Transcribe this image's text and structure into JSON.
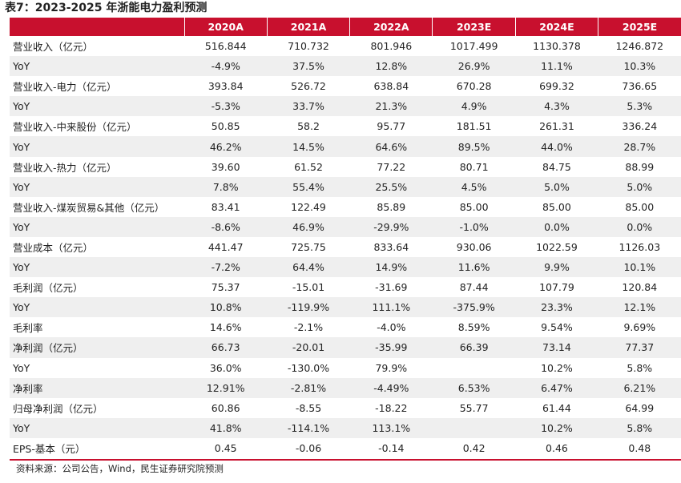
{
  "title": "表7：2023-2025 年浙能电力盈利预测",
  "headers": [
    "",
    "2020A",
    "2021A",
    "2022A",
    "2023E",
    "2024E",
    "2025E"
  ],
  "rows": [
    {
      "label": "营业收入（亿元）",
      "values": [
        "516.844",
        "710.732",
        "801.946",
        "1017.499",
        "1130.378",
        "1246.872"
      ]
    },
    {
      "label": "YoY",
      "values": [
        "-4.9%",
        "37.5%",
        "12.8%",
        "26.9%",
        "11.1%",
        "10.3%"
      ]
    },
    {
      "label": "营业收入-电力（亿元）",
      "values": [
        "393.84",
        "526.72",
        "638.84",
        "670.28",
        "699.32",
        "736.65"
      ]
    },
    {
      "label": "YoY",
      "values": [
        "-5.3%",
        "33.7%",
        "21.3%",
        "4.9%",
        "4.3%",
        "5.3%"
      ]
    },
    {
      "label": "营业收入-中来股份（亿元）",
      "values": [
        "50.85",
        "58.2",
        "95.77",
        "181.51",
        "261.31",
        "336.24"
      ]
    },
    {
      "label": "YoY",
      "values": [
        "46.2%",
        "14.5%",
        "64.6%",
        "89.5%",
        "44.0%",
        "28.7%"
      ]
    },
    {
      "label": "营业收入-热力（亿元）",
      "values": [
        "39.60",
        "61.52",
        "77.22",
        "80.71",
        "84.75",
        "88.99"
      ]
    },
    {
      "label": "YoY",
      "values": [
        "7.8%",
        "55.4%",
        "25.5%",
        "4.5%",
        "5.0%",
        "5.0%"
      ]
    },
    {
      "label": "营业收入-煤炭贸易&其他（亿元）",
      "values": [
        "83.41",
        "122.49",
        "85.89",
        "85.00",
        "85.00",
        "85.00"
      ]
    },
    {
      "label": "YoY",
      "values": [
        "-8.6%",
        "46.9%",
        "-29.9%",
        "-1.0%",
        "0.0%",
        "0.0%"
      ]
    },
    {
      "label": "营业成本（亿元）",
      "values": [
        "441.47",
        "725.75",
        "833.64",
        "930.06",
        "1022.59",
        "1126.03"
      ]
    },
    {
      "label": "YoY",
      "values": [
        "-7.2%",
        "64.4%",
        "14.9%",
        "11.6%",
        "9.9%",
        "10.1%"
      ]
    },
    {
      "label": "毛利润（亿元）",
      "values": [
        "75.37",
        "-15.01",
        "-31.69",
        "87.44",
        "107.79",
        "120.84"
      ]
    },
    {
      "label": "YoY",
      "values": [
        "10.8%",
        "-119.9%",
        "111.1%",
        "-375.9%",
        "23.3%",
        "12.1%"
      ]
    },
    {
      "label": "毛利率",
      "values": [
        "14.6%",
        "-2.1%",
        "-4.0%",
        "8.59%",
        "9.54%",
        "9.69%"
      ]
    },
    {
      "label": "净利润（亿元）",
      "values": [
        "66.73",
        "-20.01",
        "-35.99",
        "66.39",
        "73.14",
        "77.37"
      ]
    },
    {
      "label": "YoY",
      "values": [
        "36.0%",
        "-130.0%",
        "79.9%",
        "",
        "10.2%",
        "5.8%"
      ]
    },
    {
      "label": "净利率",
      "values": [
        "12.91%",
        "-2.81%",
        "-4.49%",
        "6.53%",
        "6.47%",
        "6.21%"
      ]
    },
    {
      "label": "归母净利润（亿元）",
      "values": [
        "60.86",
        "-8.55",
        "-18.22",
        "55.77",
        "61.44",
        "64.99"
      ]
    },
    {
      "label": "YoY",
      "values": [
        "41.8%",
        "-114.1%",
        "113.1%",
        "",
        "10.2%",
        "5.8%"
      ]
    },
    {
      "label": "EPS-基本（元）",
      "values": [
        "0.45",
        "-0.06",
        "-0.14",
        "0.42",
        "0.46",
        "0.48"
      ]
    }
  ],
  "source": "资料来源：公司公告，Wind，民生证券研究院预测",
  "colors": {
    "header_bg": "#c8102e",
    "stripe_bg": "#efefef"
  }
}
